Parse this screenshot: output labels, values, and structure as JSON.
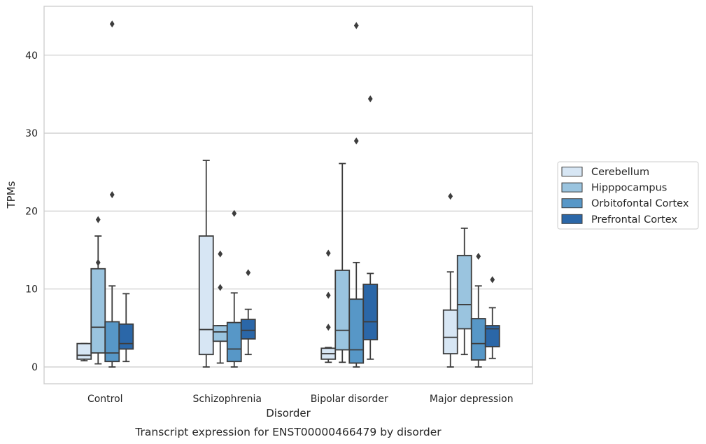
{
  "chart_data": {
    "type": "box",
    "title": "",
    "caption": "Transcript expression for ENST00000466479 by disorder",
    "xlabel": "Disorder",
    "ylabel": "TPMs",
    "ylim": [
      -2,
      46
    ],
    "yticks": [
      0,
      10,
      20,
      30,
      40
    ],
    "grid": "horizontal",
    "legend_position": "right",
    "categories": [
      "Control",
      "Schizophrenia",
      "Bipolar disorder",
      "Major depression"
    ],
    "series": [
      {
        "name": "Cerebellum",
        "color": "#d7e6f4",
        "boxes": [
          {
            "whislo": 0.8,
            "q1": 1.0,
            "med": 1.5,
            "q3": 3.0,
            "whishi": 3.0,
            "fliers": []
          },
          {
            "whislo": 0.0,
            "q1": 1.6,
            "med": 4.8,
            "q3": 16.8,
            "whishi": 26.5,
            "fliers": []
          },
          {
            "whislo": 0.6,
            "q1": 1.0,
            "med": 1.7,
            "q3": 2.4,
            "whishi": 2.5,
            "fliers": [
              5.1,
              9.2,
              14.6
            ]
          },
          {
            "whislo": 0.0,
            "q1": 1.7,
            "med": 3.8,
            "q3": 7.3,
            "whishi": 12.2,
            "fliers": [
              21.9
            ]
          }
        ]
      },
      {
        "name": "Hipppocampus",
        "color": "#9ac4df",
        "boxes": [
          {
            "whislo": 0.4,
            "q1": 1.8,
            "med": 5.1,
            "q3": 12.6,
            "whishi": 16.8,
            "fliers": [
              13.4,
              18.9
            ]
          },
          {
            "whislo": 0.5,
            "q1": 3.3,
            "med": 4.5,
            "q3": 5.3,
            "whishi": 5.3,
            "fliers": [
              10.2,
              14.5
            ]
          },
          {
            "whislo": 0.6,
            "q1": 2.2,
            "med": 4.7,
            "q3": 12.4,
            "whishi": 26.1,
            "fliers": []
          },
          {
            "whislo": 1.6,
            "q1": 4.9,
            "med": 8.0,
            "q3": 14.3,
            "whishi": 17.8,
            "fliers": []
          }
        ]
      },
      {
        "name": "Orbitofontal Cortex",
        "color": "#5797c7",
        "boxes": [
          {
            "whislo": 0.0,
            "q1": 0.7,
            "med": 1.8,
            "q3": 5.8,
            "whishi": 10.4,
            "fliers": [
              22.1,
              44.0
            ]
          },
          {
            "whislo": 0.0,
            "q1": 0.7,
            "med": 2.3,
            "q3": 5.7,
            "whishi": 9.5,
            "fliers": [
              19.7
            ]
          },
          {
            "whislo": 0.0,
            "q1": 0.5,
            "med": 2.2,
            "q3": 8.7,
            "whishi": 13.4,
            "fliers": [
              29.0,
              43.8
            ]
          },
          {
            "whislo": 0.0,
            "q1": 0.9,
            "med": 3.0,
            "q3": 6.2,
            "whishi": 10.4,
            "fliers": [
              14.2
            ]
          }
        ]
      },
      {
        "name": "Prefrontal Cortex",
        "color": "#2b67a8",
        "boxes": [
          {
            "whislo": 0.7,
            "q1": 2.3,
            "med": 3.0,
            "q3": 5.5,
            "whishi": 9.4,
            "fliers": []
          },
          {
            "whislo": 1.6,
            "q1": 3.6,
            "med": 4.7,
            "q3": 6.1,
            "whishi": 7.4,
            "fliers": [
              12.1
            ]
          },
          {
            "whislo": 1.0,
            "q1": 3.5,
            "med": 5.8,
            "q3": 10.6,
            "whishi": 12.0,
            "fliers": [
              34.4
            ]
          },
          {
            "whislo": 1.1,
            "q1": 2.6,
            "med": 4.9,
            "q3": 5.3,
            "whishi": 7.6,
            "fliers": [
              11.2
            ]
          }
        ]
      }
    ]
  }
}
